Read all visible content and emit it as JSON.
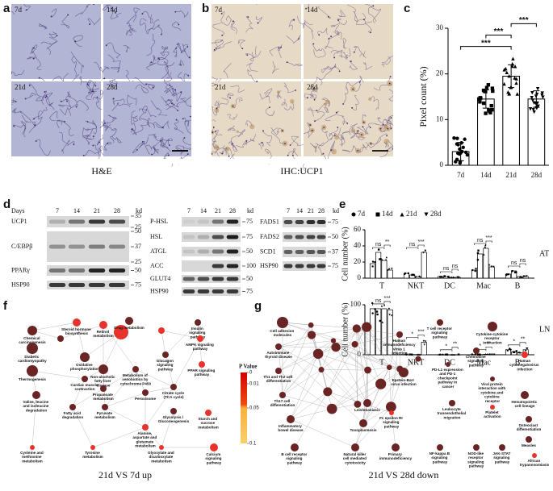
{
  "panel_labels": [
    "a",
    "b",
    "c",
    "d",
    "e",
    "f",
    "g"
  ],
  "micrographs": {
    "he": {
      "tiles": [
        "7d",
        "14d",
        "21d",
        "28d"
      ],
      "caption": "H&E"
    },
    "ihc": {
      "tiles": [
        "7d",
        "14d",
        "21d",
        "28d"
      ],
      "caption": "IHC:UCP1"
    }
  },
  "chart_data": [
    {
      "type": "bar",
      "ylabel": "Pixel count (%)",
      "categories": [
        "7d",
        "14d",
        "21d",
        "28d"
      ],
      "values": [
        3,
        14.5,
        19.5,
        14.5
      ],
      "errors": [
        2,
        2,
        2.5,
        1.8
      ],
      "color": "#ffffff",
      "ylim": [
        0,
        30
      ],
      "yticks": [
        0,
        10,
        20,
        30
      ],
      "annotations": [
        "***",
        "***",
        "***"
      ]
    },
    {
      "type": "grouped_bar",
      "legend": [
        "7d",
        "14d",
        "21d",
        "28d"
      ],
      "ylabel": "Cell number (%)",
      "categories": [
        "T",
        "NKT",
        "DC",
        "Mac",
        "B"
      ],
      "color": "#ffffff",
      "subplots": [
        {
          "label": "AT",
          "ylim": [
            0,
            60
          ],
          "yticks": [
            0,
            20,
            40,
            60
          ],
          "values": [
            [
              18,
              32,
              22,
              10
            ],
            [
              6,
              4,
              2,
              32
            ],
            [
              2,
              2,
              1,
              1
            ],
            [
              10,
              30,
              37,
              14
            ],
            [
              5,
              9,
              2,
              2
            ]
          ],
          "annotations": [
            [
              "ns",
              "**"
            ],
            [
              "ns",
              "***"
            ],
            [
              "ns",
              "ns"
            ],
            [
              "ns",
              "***"
            ],
            [
              "ns",
              "ns"
            ]
          ]
        },
        {
          "label": "LN",
          "ylim": [
            0,
            100
          ],
          "yticks": [
            0,
            50,
            100
          ],
          "values": [
            [
              92,
              92,
              92,
              90
            ],
            [
              0.5,
              0.5,
              0.5,
              25
            ],
            [
              0.3,
              0.3,
              0.3,
              0.3
            ],
            [
              0.5,
              0.5,
              1,
              0.5
            ],
            [
              10,
              6,
              4,
              10
            ]
          ],
          "annotations": [
            [
              "ns",
              "***"
            ],
            [
              "*",
              "***"
            ],
            [
              "*",
              "**"
            ],
            [
              "*",
              "**"
            ],
            [
              "*",
              "**"
            ]
          ]
        }
      ]
    }
  ],
  "blots": [
    {
      "header": "Days",
      "lanes": [
        "7",
        "14",
        "21",
        "28"
      ],
      "unit": "kd",
      "rows": [
        {
          "label": "UCP1",
          "markers": [
            35,
            25
          ]
        },
        {
          "label": "C/EBPβ",
          "markers": [
            50,
            37,
            25
          ]
        },
        {
          "label": "PPARγ",
          "markers": [
            50
          ]
        },
        {
          "label": "HSP90",
          "markers": [
            75
          ]
        }
      ]
    },
    {
      "lanes": [
        "7",
        "14",
        "21",
        "28"
      ],
      "unit": "kd",
      "rows": [
        {
          "label": "P-HSL",
          "markers": [
            75
          ]
        },
        {
          "label": "HSL",
          "markers": [
            75
          ]
        },
        {
          "label": "ATGL",
          "markers": [
            50
          ]
        },
        {
          "label": "ACC",
          "markers": [
            100
          ]
        },
        {
          "label": "GLUT4",
          "markers": [
            50
          ]
        },
        {
          "label": "HSP90",
          "markers": [
            75
          ]
        }
      ]
    },
    {
      "lanes": [
        "7",
        "14",
        "21",
        "28"
      ],
      "unit": "kd",
      "rows": [
        {
          "label": "FADS1",
          "markers": [
            75
          ]
        },
        {
          "label": "FADS2",
          "markers": [
            50
          ]
        },
        {
          "label": "SCD1",
          "markers": [
            37
          ]
        },
        {
          "label": "HSP90",
          "markers": [
            75
          ]
        }
      ]
    }
  ],
  "networks": [
    {
      "caption": "21d VS 7d up",
      "legend": {
        "title": "P Value",
        "ticks": [
          0,
          0.01,
          0.05,
          0.1
        ]
      },
      "nodes": [
        "Chemical carcinogenesis",
        "Steroid hormone biosynthesis",
        "Retinol metabolism",
        "Drug metabolism",
        "Insulin signaling pathway",
        "Diabetic cardiomyopathy",
        "Oxidative phosphorylation",
        "Non-alcoholic fatty liver disease",
        "Metabolism of xenobiotics by cytochrome P450",
        "AMPK signaling pathway",
        "Thermogenesis",
        "Cardiac muscle contraction",
        "Glucagon signaling pathway",
        "PPAR signaling pathway",
        "Propanoate metabolism",
        "Peroxisome",
        "Citrate cycle (TCA cycle)",
        "Valine, leucine and isoleucine degradation",
        "Fatty acid degradation",
        "Pyruvate metabolism",
        "Glycolysis / Gluconeogenesis",
        "Starch and sucrose metabolism",
        "Alanine, aspartate and glutamate metabolism",
        "Cysteine and methionine metabolism",
        "Tyrosine metabolism",
        "Glyoxylate and dicarboxylate metabolism",
        "Calcium signaling pathway"
      ]
    },
    {
      "caption": "21d VS 28d down",
      "nodes": [
        "Cell adhesion molecules",
        "T cell receptor signaling pathway",
        "Cytokine-cytokine receptor interaction",
        "Human immunodeficiency virus 1 infection",
        "Chemokine signaling pathway",
        "Human cytomegalovirus infection",
        "Autoimmune thyroid disease",
        "PD-L1 expression and PD-1 checkpoint pathway in cancer",
        "Th1 and Th2 cell differentiation",
        "Viral protein interaction with cytokine and cytokine receptor",
        "Epstein-Barr virus infection",
        "Th17 cell differentiation",
        "Leishmaniasis",
        "Hematopoietic cell lineage",
        "Leukocyte transendothelial migration",
        "Platelet activation",
        "Toxoplasmosis",
        "Osteoclast differentiation",
        "Inflammatory bowel disease",
        "Fc epsilon RI signaling pathway",
        "Measles",
        "B cell receptor signaling pathway",
        "Natural killer cell mediated cytotoxicity",
        "Primary immunodeficiency",
        "NF-kappa B signaling pathway",
        "NOD-like receptor signaling pathway",
        "JAK-STAT signaling pathway",
        "African trypanosomiasis"
      ]
    }
  ]
}
